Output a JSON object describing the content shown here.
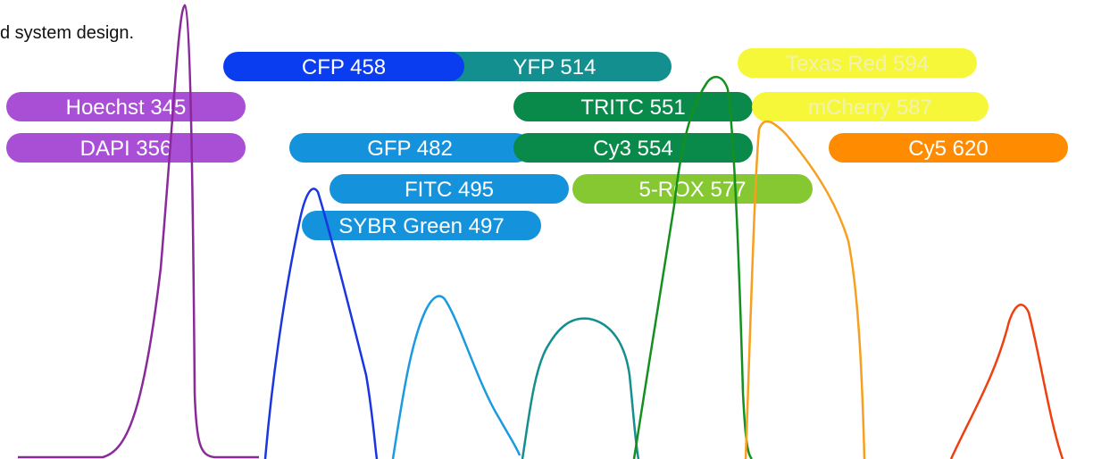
{
  "caption": "d system design.",
  "fluorophores": [
    {
      "label": "YFP 514",
      "color": "#138f8f",
      "text_color": "#ffffff"
    },
    {
      "label": "CFP 458",
      "color": "#0a3cf0",
      "text_color": "#ffffff"
    },
    {
      "label": "Texas Red 594",
      "color": "#f7f73a",
      "text_color": "#f2f2b0"
    },
    {
      "label": "Hoechst 345",
      "color": "#a94fd6",
      "text_color": "#ffffff"
    },
    {
      "label": "TRITC 551",
      "color": "#0a8a4a",
      "text_color": "#ffffff"
    },
    {
      "label": "mCherry 587",
      "color": "#f7f73a",
      "text_color": "#f2f2b0"
    },
    {
      "label": "DAPI 356",
      "color": "#a94fd6",
      "text_color": "#ffffff"
    },
    {
      "label": "GFP 482",
      "color": "#1592dc",
      "text_color": "#ffffff"
    },
    {
      "label": "Cy3 554",
      "color": "#0a8a4a",
      "text_color": "#ffffff"
    },
    {
      "label": "Cy5 620",
      "color": "#ff8c00",
      "text_color": "#ffffff"
    },
    {
      "label": "FITC 495",
      "color": "#1592dc",
      "text_color": "#ffffff"
    },
    {
      "label": "5-ROX 577",
      "color": "#86c832",
      "text_color": "#ffffff"
    },
    {
      "label": "SYBR Green 497",
      "color": "#1592dc",
      "text_color": "#ffffff"
    }
  ]
}
